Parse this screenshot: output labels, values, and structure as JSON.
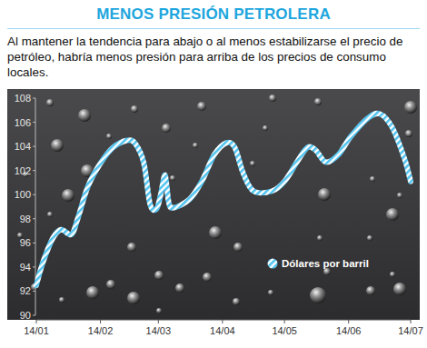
{
  "chart_data": {
    "type": "line",
    "title": "MENOS PRESIÓN PETROLERA",
    "subtitle": "Al mantener la tendencia para abajo o al menos estabilizarse el precio de petróleo, habría menos presión para arriba de los precios de consumo locales.",
    "x": [
      0,
      3,
      8,
      12,
      17,
      20,
      25,
      31,
      37,
      44,
      48,
      52,
      55,
      58,
      60,
      62,
      63,
      64,
      66,
      74,
      80,
      86,
      92,
      96,
      100,
      105,
      114,
      120,
      126,
      131,
      135,
      140,
      146,
      152,
      160,
      166,
      172,
      178,
      181
    ],
    "series": [
      {
        "name": "Dólares por barril",
        "color": "#4fc3f0",
        "line_style": "striped",
        "values": [
          92.5,
          94.3,
          96.4,
          97.1,
          96.7,
          98.0,
          100.7,
          102.6,
          103.9,
          104.5,
          104.2,
          102.6,
          99.2,
          98.8,
          99.9,
          101.6,
          100.8,
          99.4,
          98.9,
          99.6,
          101.1,
          103.3,
          104.3,
          103.9,
          101.8,
          100.3,
          100.3,
          101.1,
          102.7,
          103.9,
          103.7,
          102.7,
          103.3,
          104.8,
          106.3,
          106.7,
          105.6,
          103.0,
          101.1
        ]
      }
    ],
    "xlim": [
      0,
      181
    ],
    "xticks": [
      {
        "value": 0,
        "label": "14/01"
      },
      {
        "value": 31,
        "label": "14/02"
      },
      {
        "value": 59,
        "label": "14/03"
      },
      {
        "value": 90,
        "label": "14/04"
      },
      {
        "value": 120,
        "label": "14/05"
      },
      {
        "value": 151,
        "label": "14/06"
      },
      {
        "value": 181,
        "label": "14/07"
      }
    ],
    "ylim": [
      90,
      108
    ],
    "yticks": [
      90,
      92,
      94,
      96,
      98,
      100,
      102,
      104,
      106,
      108
    ],
    "grid": false,
    "legend": "lower right"
  }
}
